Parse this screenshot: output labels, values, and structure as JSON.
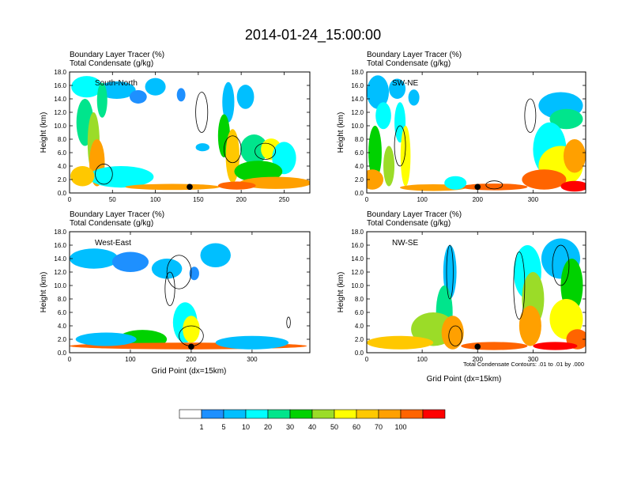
{
  "figure": {
    "title": "2014-01-24_15:00:00",
    "xlabel": "Grid Point (dx=15km)",
    "ylabel": "Height (km)",
    "contour_note": "Total Condensate Contours: .01 to .01 by .000"
  },
  "colors": {
    "levels": [
      "#ffffff",
      "#1e90ff",
      "#00bfff",
      "#00ffff",
      "#00e58c",
      "#00d200",
      "#9bdc28",
      "#ffff00",
      "#ffc800",
      "#ffa000",
      "#ff6400",
      "#ff0000"
    ],
    "contour": "#000000",
    "marker": "#000000"
  },
  "colorbar": {
    "labels": [
      "1",
      "5",
      "10",
      "20",
      "30",
      "40",
      "50",
      "60",
      "70",
      "100"
    ]
  },
  "chart_data": [
    {
      "type": "heatmap",
      "label": "South-North",
      "header_line1": "Boundary Layer Tracer   (%)",
      "header_line2": "Total Condensate   (g/kg)",
      "xlim": [
        0,
        280
      ],
      "ylim": [
        0,
        18
      ],
      "xticks": [
        0,
        50,
        100,
        150,
        200,
        250
      ],
      "yticks": [
        "0.0",
        "2.0",
        "4.0",
        "6.0",
        "8.0",
        "10.0",
        "12.0",
        "14.0",
        "16.0",
        "18.0"
      ],
      "marker_x": 140,
      "blobs": [
        {
          "x": 20,
          "y": 15.8,
          "rx": 18,
          "ry": 1.6,
          "l": 3
        },
        {
          "x": 55,
          "y": 15.3,
          "rx": 22,
          "ry": 1.3,
          "l": 2
        },
        {
          "x": 80,
          "y": 14.3,
          "rx": 10,
          "ry": 1.0,
          "l": 1
        },
        {
          "x": 100,
          "y": 15.8,
          "rx": 12,
          "ry": 1.3,
          "l": 2
        },
        {
          "x": 130,
          "y": 14.6,
          "rx": 5,
          "ry": 1.0,
          "l": 1
        },
        {
          "x": 155,
          "y": 6.8,
          "rx": 8,
          "ry": 0.6,
          "l": 2
        },
        {
          "x": 18,
          "y": 10.5,
          "rx": 10,
          "ry": 3.5,
          "l": 4
        },
        {
          "x": 28,
          "y": 7.5,
          "rx": 7,
          "ry": 4.5,
          "l": 6
        },
        {
          "x": 38,
          "y": 13.8,
          "rx": 6,
          "ry": 2.6,
          "l": 4
        },
        {
          "x": 32,
          "y": 4.5,
          "rx": 9,
          "ry": 3.5,
          "l": 9
        },
        {
          "x": 60,
          "y": 2.4,
          "rx": 38,
          "ry": 1.6,
          "l": 3
        },
        {
          "x": 15,
          "y": 2.5,
          "rx": 14,
          "ry": 1.5,
          "l": 8
        },
        {
          "x": 185,
          "y": 13.5,
          "rx": 7,
          "ry": 3.0,
          "l": 2
        },
        {
          "x": 205,
          "y": 14.3,
          "rx": 10,
          "ry": 1.8,
          "l": 2
        },
        {
          "x": 180,
          "y": 8.5,
          "rx": 7,
          "ry": 3.2,
          "l": 5
        },
        {
          "x": 190,
          "y": 5.5,
          "rx": 8,
          "ry": 4.0,
          "l": 8
        },
        {
          "x": 215,
          "y": 6.5,
          "rx": 16,
          "ry": 2.2,
          "l": 4
        },
        {
          "x": 235,
          "y": 6.5,
          "rx": 12,
          "ry": 1.6,
          "l": 7
        },
        {
          "x": 250,
          "y": 5.2,
          "rx": 14,
          "ry": 2.4,
          "l": 3
        },
        {
          "x": 220,
          "y": 3.2,
          "rx": 28,
          "ry": 1.6,
          "l": 5
        },
        {
          "x": 240,
          "y": 1.5,
          "rx": 42,
          "ry": 0.9,
          "l": 9
        },
        {
          "x": 120,
          "y": 0.9,
          "rx": 55,
          "ry": 0.45,
          "l": 9
        },
        {
          "x": 195,
          "y": 1.1,
          "rx": 22,
          "ry": 0.6,
          "l": 10
        }
      ],
      "contours": [
        {
          "x": 154,
          "y": 12.0,
          "rx": 7,
          "ry": 3.0
        },
        {
          "x": 190,
          "y": 6.5,
          "rx": 10,
          "ry": 2.0
        },
        {
          "x": 228,
          "y": 6.2,
          "rx": 12,
          "ry": 1.2
        },
        {
          "x": 40,
          "y": 2.8,
          "rx": 10,
          "ry": 1.5
        }
      ]
    },
    {
      "type": "heatmap",
      "label": "SW-NE",
      "header_line1": "Boundary Layer Tracer   (%)",
      "header_line2": "Total Condensate   (g/kg)",
      "xlim": [
        0,
        395
      ],
      "ylim": [
        0,
        18
      ],
      "xticks": [
        0,
        100,
        200,
        300
      ],
      "yticks": [
        "0.0",
        "2.0",
        "4.0",
        "6.0",
        "8.0",
        "10.0",
        "12.0",
        "14.0",
        "16.0",
        "18.0"
      ],
      "marker_x": 200,
      "blobs": [
        {
          "x": 20,
          "y": 15.0,
          "rx": 20,
          "ry": 2.5,
          "l": 2
        },
        {
          "x": 55,
          "y": 15.5,
          "rx": 15,
          "ry": 1.5,
          "l": 2
        },
        {
          "x": 85,
          "y": 14.2,
          "rx": 10,
          "ry": 1.2,
          "l": 2
        },
        {
          "x": 30,
          "y": 11.5,
          "rx": 14,
          "ry": 2.0,
          "l": 3
        },
        {
          "x": 60,
          "y": 10.5,
          "rx": 10,
          "ry": 3.0,
          "l": 3
        },
        {
          "x": 15,
          "y": 6.0,
          "rx": 12,
          "ry": 4.0,
          "l": 5
        },
        {
          "x": 40,
          "y": 4.0,
          "rx": 10,
          "ry": 3.0,
          "l": 6
        },
        {
          "x": 70,
          "y": 5.5,
          "rx": 9,
          "ry": 4.5,
          "l": 7
        },
        {
          "x": 10,
          "y": 2.0,
          "rx": 20,
          "ry": 1.5,
          "l": 9
        },
        {
          "x": 120,
          "y": 0.8,
          "rx": 60,
          "ry": 0.5,
          "l": 9
        },
        {
          "x": 230,
          "y": 0.9,
          "rx": 60,
          "ry": 0.5,
          "l": 10
        },
        {
          "x": 350,
          "y": 13.0,
          "rx": 40,
          "ry": 2.0,
          "l": 2
        },
        {
          "x": 360,
          "y": 11.0,
          "rx": 30,
          "ry": 1.5,
          "l": 4
        },
        {
          "x": 330,
          "y": 6.5,
          "rx": 30,
          "ry": 4.0,
          "l": 3
        },
        {
          "x": 350,
          "y": 4.0,
          "rx": 40,
          "ry": 3.0,
          "l": 7
        },
        {
          "x": 375,
          "y": 5.5,
          "rx": 20,
          "ry": 2.5,
          "l": 9
        },
        {
          "x": 320,
          "y": 2.0,
          "rx": 40,
          "ry": 1.5,
          "l": 10
        },
        {
          "x": 375,
          "y": 1.0,
          "rx": 25,
          "ry": 0.8,
          "l": 11
        },
        {
          "x": 160,
          "y": 1.5,
          "rx": 20,
          "ry": 1.0,
          "l": 3
        }
      ],
      "contours": [
        {
          "x": 295,
          "y": 11.5,
          "rx": 10,
          "ry": 2.5
        },
        {
          "x": 60,
          "y": 7.0,
          "rx": 10,
          "ry": 3.0
        },
        {
          "x": 230,
          "y": 1.2,
          "rx": 15,
          "ry": 0.6
        }
      ]
    },
    {
      "type": "heatmap",
      "label": "West-East",
      "header_line1": "Boundary Layer Tracer   (%)",
      "header_line2": "Total Condensate   (g/kg)",
      "xlim": [
        0,
        395
      ],
      "ylim": [
        0,
        18
      ],
      "xticks": [
        0,
        100,
        200,
        300
      ],
      "yticks": [
        "0.0",
        "2.0",
        "4.0",
        "6.0",
        "8.0",
        "10.0",
        "12.0",
        "14.0",
        "16.0",
        "18.0"
      ],
      "marker_x": 200,
      "blobs": [
        {
          "x": 40,
          "y": 14.0,
          "rx": 40,
          "ry": 1.5,
          "l": 2
        },
        {
          "x": 100,
          "y": 13.5,
          "rx": 30,
          "ry": 1.5,
          "l": 1
        },
        {
          "x": 160,
          "y": 12.5,
          "rx": 25,
          "ry": 1.5,
          "l": 2
        },
        {
          "x": 240,
          "y": 14.5,
          "rx": 25,
          "ry": 1.8,
          "l": 2
        },
        {
          "x": 205,
          "y": 11.8,
          "rx": 8,
          "ry": 1.0,
          "l": 1
        },
        {
          "x": 190,
          "y": 4.5,
          "rx": 20,
          "ry": 3.0,
          "l": 3
        },
        {
          "x": 200,
          "y": 3.5,
          "rx": 14,
          "ry": 2.0,
          "l": 7
        },
        {
          "x": 120,
          "y": 2.0,
          "rx": 40,
          "ry": 1.4,
          "l": 5
        },
        {
          "x": 195,
          "y": 1.0,
          "rx": 195,
          "ry": 0.5,
          "l": 10
        },
        {
          "x": 300,
          "y": 1.5,
          "rx": 60,
          "ry": 1.0,
          "l": 2
        },
        {
          "x": 60,
          "y": 2.0,
          "rx": 50,
          "ry": 1.0,
          "l": 2
        }
      ],
      "contours": [
        {
          "x": 180,
          "y": 12.0,
          "rx": 20,
          "ry": 2.5
        },
        {
          "x": 165,
          "y": 9.5,
          "rx": 8,
          "ry": 2.5
        },
        {
          "x": 200,
          "y": 2.5,
          "rx": 20,
          "ry": 1.5
        },
        {
          "x": 360,
          "y": 4.5,
          "rx": 3,
          "ry": 0.8
        }
      ]
    },
    {
      "type": "heatmap",
      "label": "NW-SE",
      "header_line1": "Boundary Layer Tracer   (%)",
      "header_line2": "Total Condensate   (g/kg)",
      "xlim": [
        0,
        395
      ],
      "ylim": [
        0,
        18
      ],
      "xticks": [
        0,
        100,
        200,
        300
      ],
      "yticks": [
        "0.0",
        "2.0",
        "4.0",
        "6.0",
        "8.0",
        "10.0",
        "12.0",
        "14.0",
        "16.0",
        "18.0"
      ],
      "marker_x": 200,
      "blobs": [
        {
          "x": 150,
          "y": 12.0,
          "rx": 12,
          "ry": 4.0,
          "l": 2
        },
        {
          "x": 140,
          "y": 6.0,
          "rx": 15,
          "ry": 4.0,
          "l": 4
        },
        {
          "x": 120,
          "y": 3.5,
          "rx": 40,
          "ry": 2.5,
          "l": 6
        },
        {
          "x": 155,
          "y": 3.0,
          "rx": 20,
          "ry": 2.5,
          "l": 9
        },
        {
          "x": 60,
          "y": 1.5,
          "rx": 60,
          "ry": 1.0,
          "l": 8
        },
        {
          "x": 230,
          "y": 1.0,
          "rx": 60,
          "ry": 0.6,
          "l": 10
        },
        {
          "x": 290,
          "y": 12.0,
          "rx": 25,
          "ry": 4.0,
          "l": 3
        },
        {
          "x": 300,
          "y": 8.0,
          "rx": 20,
          "ry": 4.0,
          "l": 6
        },
        {
          "x": 295,
          "y": 4.0,
          "rx": 20,
          "ry": 3.0,
          "l": 9
        },
        {
          "x": 350,
          "y": 14.0,
          "rx": 35,
          "ry": 3.0,
          "l": 2
        },
        {
          "x": 370,
          "y": 10.0,
          "rx": 20,
          "ry": 4.0,
          "l": 5
        },
        {
          "x": 360,
          "y": 5.0,
          "rx": 30,
          "ry": 3.0,
          "l": 7
        },
        {
          "x": 380,
          "y": 2.0,
          "rx": 20,
          "ry": 1.5,
          "l": 10
        },
        {
          "x": 340,
          "y": 1.0,
          "rx": 40,
          "ry": 0.6,
          "l": 11
        }
      ],
      "contours": [
        {
          "x": 150,
          "y": 12.0,
          "rx": 6,
          "ry": 4.0
        },
        {
          "x": 275,
          "y": 10.0,
          "rx": 10,
          "ry": 5.0
        },
        {
          "x": 350,
          "y": 13.0,
          "rx": 15,
          "ry": 3.0
        },
        {
          "x": 160,
          "y": 2.5,
          "rx": 12,
          "ry": 1.5
        }
      ]
    }
  ]
}
